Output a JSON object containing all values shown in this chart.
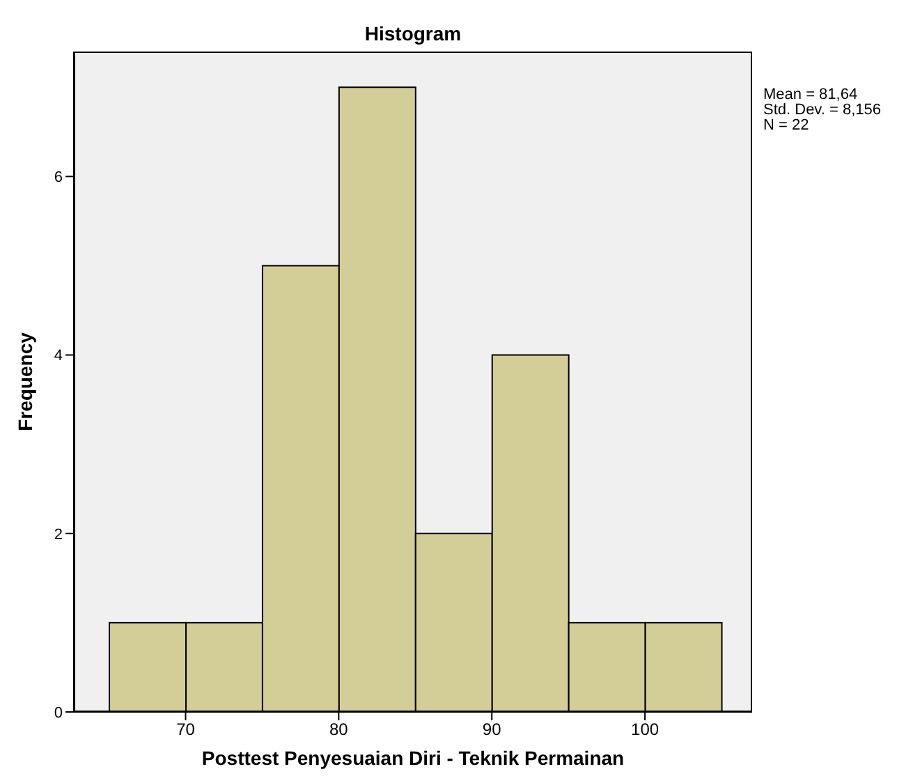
{
  "chart_data": {
    "type": "histogram",
    "title": "Histogram",
    "xlabel": "Posttest Penyesuaian Diri - Teknik Permainan",
    "ylabel": "Frequency",
    "bins": [
      65,
      70,
      75,
      80,
      85,
      90,
      95,
      100,
      105
    ],
    "values": [
      1,
      1,
      5,
      7,
      2,
      4,
      1,
      1
    ],
    "color": "#d3ce97",
    "xlim": [
      62.7,
      107
    ],
    "xticks": [
      70,
      80,
      90,
      100
    ],
    "ylim": [
      0,
      7.4
    ],
    "yticks": [
      0,
      2,
      4,
      6
    ],
    "grid": false,
    "legend": false,
    "annotations": [
      "Mean = 81,64",
      "Std. Dev. = 8,156",
      "N = 22"
    ]
  }
}
